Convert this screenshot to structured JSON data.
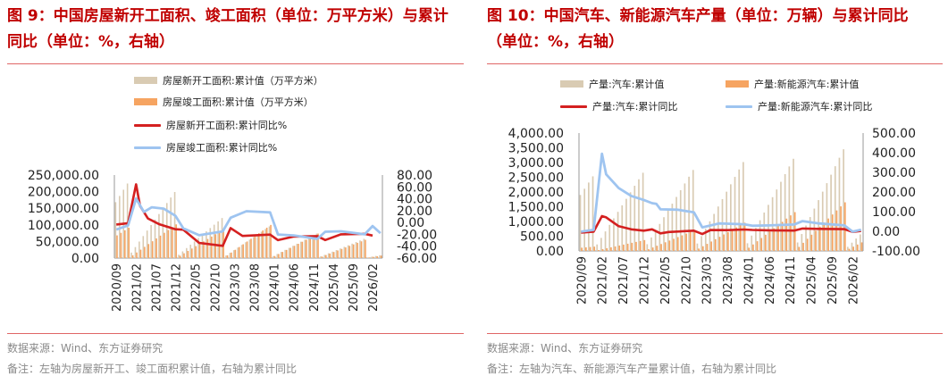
{
  "panels": [
    {
      "title": "图 9：中国房屋新开工面积、竣工面积（单位：万平方米）与累计同比（单位：%，右轴）",
      "source": "数据来源：Wind、东方证券研究",
      "note": "备注：左轴为房屋新开工、竣工面积累计值，右轴为累计同比",
      "legend": [
        {
          "label": "房屋新开工面积:累计值（万平方米）",
          "kind": "bar",
          "color": "#d9cbb3"
        },
        {
          "label": "房屋竣工面积:累计值（万平方米）",
          "kind": "bar",
          "color": "#f6a461"
        },
        {
          "label": "房屋新开工面积:累计同比%",
          "kind": "line",
          "color": "#d42020"
        },
        {
          "label": "房屋竣工面积:累计同比%",
          "kind": "line",
          "color": "#9ec4f0"
        }
      ]
    },
    {
      "title": "图 10：中国汽车、新能源汽车产量（单位：万辆）与累计同比（单位：%，右轴）",
      "source": "数据来源：Wind、东方证券研究",
      "note": "备注：左轴为汽车、新能源汽车产量累计值，右轴为累计同比",
      "legend": [
        {
          "label": "产量:汽车:累计值",
          "kind": "bar",
          "color": "#d9cbb3"
        },
        {
          "label": "产量:新能源汽车:累计值",
          "kind": "bar",
          "color": "#f6a461"
        },
        {
          "label": "产量:汽车:累计同比",
          "kind": "line",
          "color": "#d42020"
        },
        {
          "label": "产量:新能源汽车:累计同比",
          "kind": "line",
          "color": "#9ec4f0"
        }
      ]
    }
  ],
  "chart_data": [
    {
      "type": "bar",
      "x_ticks": [
        "2020/09",
        "2021/02",
        "2021/07",
        "2021/12",
        "2022/05",
        "2022/10",
        "2023/03",
        "2023/08",
        "2024/01",
        "2024/06",
        "2024/11",
        "2025/04",
        "2025/09",
        "2026/02"
      ],
      "y_left_ticks": [
        "250,000.00",
        "200,000.00",
        "150,000.00",
        "100,000.00",
        "50,000.00",
        "0.00"
      ],
      "y_right_ticks": [
        "80.00",
        "60.00",
        "40.00",
        "20.00",
        "0.00",
        "-20.00",
        "-40.00",
        "-60.00"
      ],
      "ylim_left": [
        0,
        250000
      ],
      "ylim_right": [
        -60,
        80
      ],
      "start_month": "2020/09",
      "series": [
        {
          "name": "房屋新开工面积:累计值（万平方米）",
          "axis": "left",
          "kind": "bar",
          "annual_totals": {
            "2020": 224433,
            "2021": 198895,
            "2022": 120587,
            "2023": 95376,
            "2024": 73893,
            "2025": 58000,
            "2026": 8500
          }
        },
        {
          "name": "房屋竣工面积:累计值（万平方米）",
          "axis": "left",
          "kind": "bar",
          "annual_totals": {
            "2020": 91218,
            "2021": 101412,
            "2022": 86222,
            "2023": 99831,
            "2024": 73743,
            "2025": 55000,
            "2026": 7500
          }
        },
        {
          "name": "房屋新开工面积:累计同比%",
          "axis": "right",
          "kind": "line",
          "points": [
            [
              "2020/09",
              -3.4
            ],
            [
              "2020/12",
              -1.2
            ],
            [
              "2021/02",
              64.3
            ],
            [
              "2021/03",
              28.2
            ],
            [
              "2021/05",
              6.9
            ],
            [
              "2021/08",
              -3.2
            ],
            [
              "2021/12",
              -11.4
            ],
            [
              "2022/02",
              -12.2
            ],
            [
              "2022/06",
              -34.4
            ],
            [
              "2022/12",
              -39.4
            ],
            [
              "2023/02",
              -9.4
            ],
            [
              "2023/05",
              -22.6
            ],
            [
              "2023/12",
              -20.4
            ],
            [
              "2024/02",
              -29.7
            ],
            [
              "2024/06",
              -23.7
            ],
            [
              "2024/12",
              -23.0
            ],
            [
              "2025/02",
              -29.6
            ],
            [
              "2025/06",
              -20.0
            ],
            [
              "2025/12",
              -19.0
            ],
            [
              "2026/02",
              -22.0
            ]
          ]
        },
        {
          "name": "房屋竣工面积:累计同比%",
          "axis": "right",
          "kind": "line",
          "points": [
            [
              "2020/09",
              -12.0
            ],
            [
              "2020/12",
              -4.9
            ],
            [
              "2021/02",
              40.4
            ],
            [
              "2021/04",
              17.9
            ],
            [
              "2021/06",
              25.7
            ],
            [
              "2021/09",
              23.4
            ],
            [
              "2021/12",
              11.2
            ],
            [
              "2022/02",
              -9.8
            ],
            [
              "2022/06",
              -21.5
            ],
            [
              "2022/12",
              -15.0
            ],
            [
              "2023/02",
              8.0
            ],
            [
              "2023/06",
              19.0
            ],
            [
              "2023/12",
              17.0
            ],
            [
              "2024/02",
              -20.2
            ],
            [
              "2024/06",
              -21.8
            ],
            [
              "2024/12",
              -27.7
            ],
            [
              "2025/02",
              -15.6
            ],
            [
              "2025/06",
              -14.8
            ],
            [
              "2025/12",
              -20.0
            ],
            [
              "2026/02",
              -6.0
            ],
            [
              "2026/04",
              -18.0
            ]
          ]
        }
      ]
    },
    {
      "type": "bar",
      "x_ticks": [
        "2020/09",
        "2021/02",
        "2021/07",
        "2021/12",
        "2022/05",
        "2022/10",
        "2023/03",
        "2023/08",
        "2024/01",
        "2024/06",
        "2024/11",
        "2025/04",
        "2025/09",
        "2026/02"
      ],
      "y_left_ticks": [
        "4,000.00",
        "3,500.00",
        "3,000.00",
        "2,500.00",
        "2,000.00",
        "1,500.00",
        "1,000.00",
        "500.00",
        "0.00"
      ],
      "y_right_ticks": [
        "500.00",
        "400.00",
        "300.00",
        "200.00",
        "100.00",
        "0.00",
        "-100.00"
      ],
      "ylim_left": [
        0,
        4000
      ],
      "ylim_right": [
        -100,
        500
      ],
      "start_month": "2020/09",
      "series": [
        {
          "name": "产量:汽车:累计值",
          "axis": "left",
          "kind": "bar",
          "annual_totals": {
            "2020": 2532,
            "2021": 2653,
            "2022": 2748,
            "2023": 3016,
            "2024": 3128,
            "2025": 3450,
            "2026": 560
          }
        },
        {
          "name": "产量:新能源汽车:累计值",
          "axis": "left",
          "kind": "bar",
          "annual_totals": {
            "2020": 146,
            "2021": 368,
            "2022": 706,
            "2023": 959,
            "2024": 1317,
            "2025": 1650,
            "2026": 290
          }
        },
        {
          "name": "产量:汽车:累计同比",
          "axis": "right",
          "kind": "line",
          "points": [
            [
              "2020/09",
              -6.9
            ],
            [
              "2020/12",
              -2.0
            ],
            [
              "2021/02",
              77.4
            ],
            [
              "2021/03",
              71.0
            ],
            [
              "2021/06",
              26.0
            ],
            [
              "2021/09",
              10.0
            ],
            [
              "2021/12",
              3.4
            ],
            [
              "2022/02",
              10.2
            ],
            [
              "2022/04",
              -10.5
            ],
            [
              "2022/06",
              -3.7
            ],
            [
              "2022/12",
              3.4
            ],
            [
              "2023/02",
              -14.0
            ],
            [
              "2023/04",
              6.4
            ],
            [
              "2023/08",
              6.0
            ],
            [
              "2023/12",
              9.3
            ],
            [
              "2024/02",
              7.0
            ],
            [
              "2024/06",
              4.9
            ],
            [
              "2024/12",
              3.7
            ],
            [
              "2025/02",
              14.0
            ],
            [
              "2025/06",
              12.5
            ],
            [
              "2025/12",
              11.0
            ],
            [
              "2026/02",
              -3.0
            ],
            [
              "2026/04",
              2.0
            ]
          ]
        },
        {
          "name": "产量:新能源汽车:累计同比",
          "axis": "right",
          "kind": "line",
          "points": [
            [
              "2020/09",
              -2.0
            ],
            [
              "2020/12",
              7.5
            ],
            [
              "2021/02",
              395.0
            ],
            [
              "2021/03",
              290.0
            ],
            [
              "2021/06",
              220.0
            ],
            [
              "2021/09",
              180.0
            ],
            [
              "2021/12",
              159.5
            ],
            [
              "2022/02",
              143.0
            ],
            [
              "2022/03",
              140.0
            ],
            [
              "2022/04",
              112.0
            ],
            [
              "2022/08",
              110.0
            ],
            [
              "2022/12",
              96.9
            ],
            [
              "2023/02",
              20.0
            ],
            [
              "2023/06",
              40.0
            ],
            [
              "2023/12",
              35.8
            ],
            [
              "2024/02",
              28.0
            ],
            [
              "2024/06",
              30.0
            ],
            [
              "2024/12",
              34.4
            ],
            [
              "2025/02",
              52.0
            ],
            [
              "2025/06",
              40.0
            ],
            [
              "2025/12",
              30.0
            ],
            [
              "2026/02",
              -2.0
            ],
            [
              "2026/04",
              8.0
            ]
          ]
        }
      ]
    }
  ]
}
